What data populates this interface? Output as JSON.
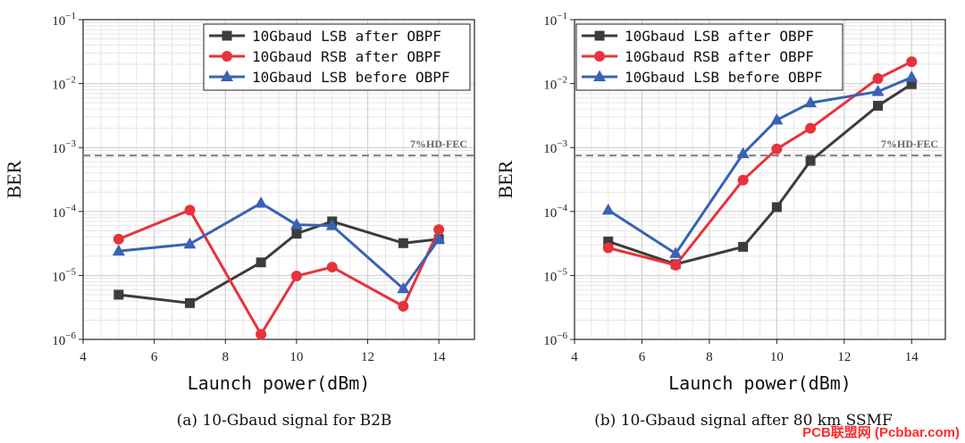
{
  "chart_data": [
    {
      "type": "line",
      "caption": "(a) 10-Gbaud signal for B2B",
      "xlabel": "Launch power(dBm)",
      "ylabel": "BER",
      "yscale": "log",
      "xlim": [
        4,
        15
      ],
      "ylim_exp": [
        -6,
        -1
      ],
      "xticks": [
        4,
        6,
        8,
        10,
        12,
        14
      ],
      "yticks_exp": [
        -6,
        -5,
        -4,
        -3,
        -2,
        -1
      ],
      "legend_position": "top-right",
      "threshold": {
        "label": "7%HD-FEC",
        "value": 0.00075
      },
      "series": [
        {
          "name": "10Gbaud LSB after OBPF",
          "color": "#3c3c3c",
          "marker": "square",
          "x": [
            5,
            7,
            9,
            10,
            11,
            13,
            14
          ],
          "y": [
            5e-06,
            3.7e-06,
            1.6e-05,
            4.5e-05,
            7e-05,
            3.2e-05,
            3.7e-05
          ]
        },
        {
          "name": "10Gbaud RSB after OBPF",
          "color": "#e8323c",
          "marker": "circle",
          "x": [
            5,
            7,
            9,
            10,
            11,
            13,
            14
          ],
          "y": [
            3.7e-05,
            0.000105,
            1.2e-06,
            9.8e-06,
            1.35e-05,
            3.3e-06,
            5.2e-05
          ]
        },
        {
          "name": "10Gbaud LSB before OBPF",
          "color": "#3a62b4",
          "marker": "triangle",
          "x": [
            5,
            7,
            9,
            10,
            11,
            13,
            14
          ],
          "y": [
            2.4e-05,
            3.1e-05,
            0.000135,
            6.2e-05,
            6e-05,
            6.2e-06,
            3.7e-05
          ]
        }
      ]
    },
    {
      "type": "line",
      "caption": "(b) 10-Gbaud signal after 80 km SSMF",
      "xlabel": "Launch power(dBm)",
      "ylabel": "BER",
      "yscale": "log",
      "xlim": [
        4,
        15
      ],
      "ylim_exp": [
        -6,
        -1
      ],
      "xticks": [
        4,
        6,
        8,
        10,
        12,
        14
      ],
      "yticks_exp": [
        -6,
        -5,
        -4,
        -3,
        -2,
        -1
      ],
      "legend_position": "top-left",
      "threshold": {
        "label": "7%HD-FEC",
        "value": 0.00075
      },
      "series": [
        {
          "name": "10Gbaud LSB after OBPF",
          "color": "#3c3c3c",
          "marker": "square",
          "x": [
            5,
            7,
            9,
            10,
            11,
            13,
            14
          ],
          "y": [
            3.4e-05,
            1.5e-05,
            2.8e-05,
            0.000117,
            0.00062,
            0.0045,
            0.0098
          ]
        },
        {
          "name": "10Gbaud RSB after OBPF",
          "color": "#e8323c",
          "marker": "circle",
          "x": [
            5,
            7,
            9,
            10,
            11,
            13,
            14
          ],
          "y": [
            2.7e-05,
            1.45e-05,
            0.00031,
            0.00095,
            0.002,
            0.012,
            0.022
          ]
        },
        {
          "name": "10Gbaud LSB before OBPF",
          "color": "#3a62b4",
          "marker": "triangle",
          "x": [
            5,
            7,
            9,
            10,
            11,
            13,
            14
          ],
          "y": [
            0.000105,
            2.2e-05,
            0.0008,
            0.0027,
            0.005,
            0.0075,
            0.0125
          ]
        }
      ]
    }
  ],
  "watermark": "PCB联盟网 (Pcbbar.com)"
}
